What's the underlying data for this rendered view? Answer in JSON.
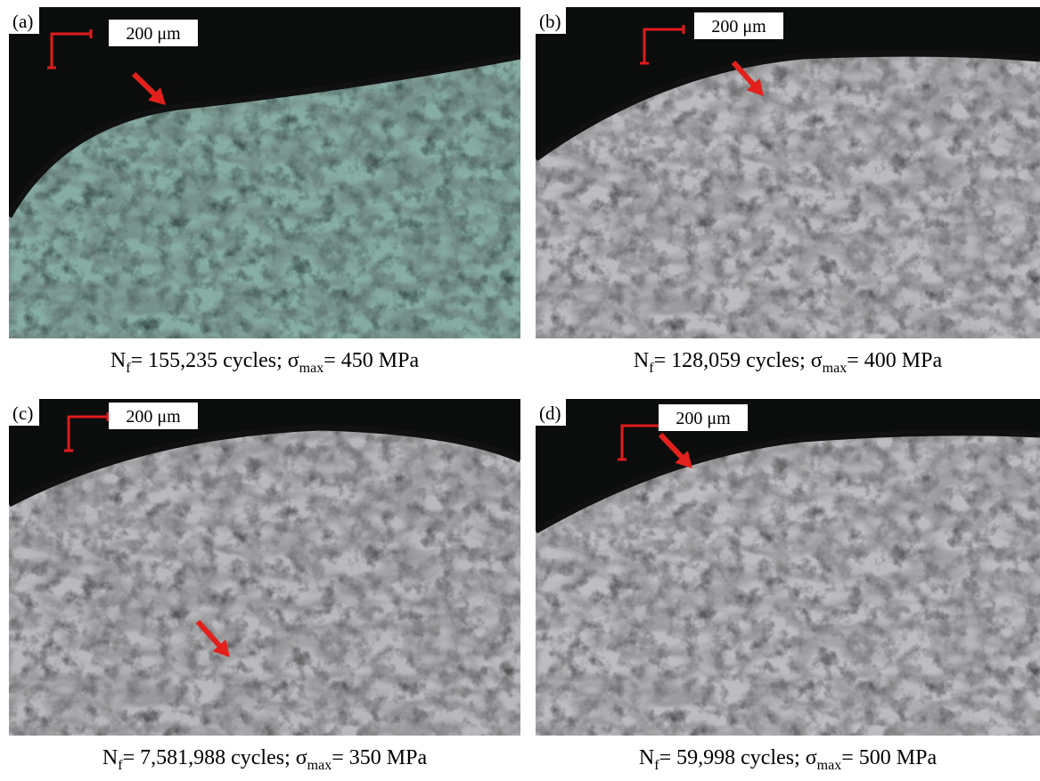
{
  "panels": [
    {
      "label": "(a)",
      "scale": "200 μm",
      "caption": {
        "symbol": "N",
        "symbol_sub": "f",
        "text": "= 155,235  cycles; σ",
        "stress_sub": "max",
        "stress": "= 450 MPa"
      }
    },
    {
      "label": "(b)",
      "scale": "200 μm",
      "caption": {
        "symbol": "N",
        "symbol_sub": "f",
        "text": "= 128,059  cycles; σ",
        "stress_sub": "max",
        "stress": "= 400 MPa"
      }
    },
    {
      "label": "(c)",
      "scale": "200 μm",
      "caption": {
        "symbol": "N",
        "symbol_sub": "f",
        "text": "= 7,581,988  cycles; σ",
        "stress_sub": "max",
        "stress": "= 350 MPa"
      }
    },
    {
      "label": "(d)",
      "scale": "200 μm",
      "caption": {
        "symbol": "N",
        "symbol_sub": "f",
        "text": "= 59,998  cycles; σ",
        "stress_sub": "max",
        "stress": "= 500 MPa"
      }
    }
  ]
}
